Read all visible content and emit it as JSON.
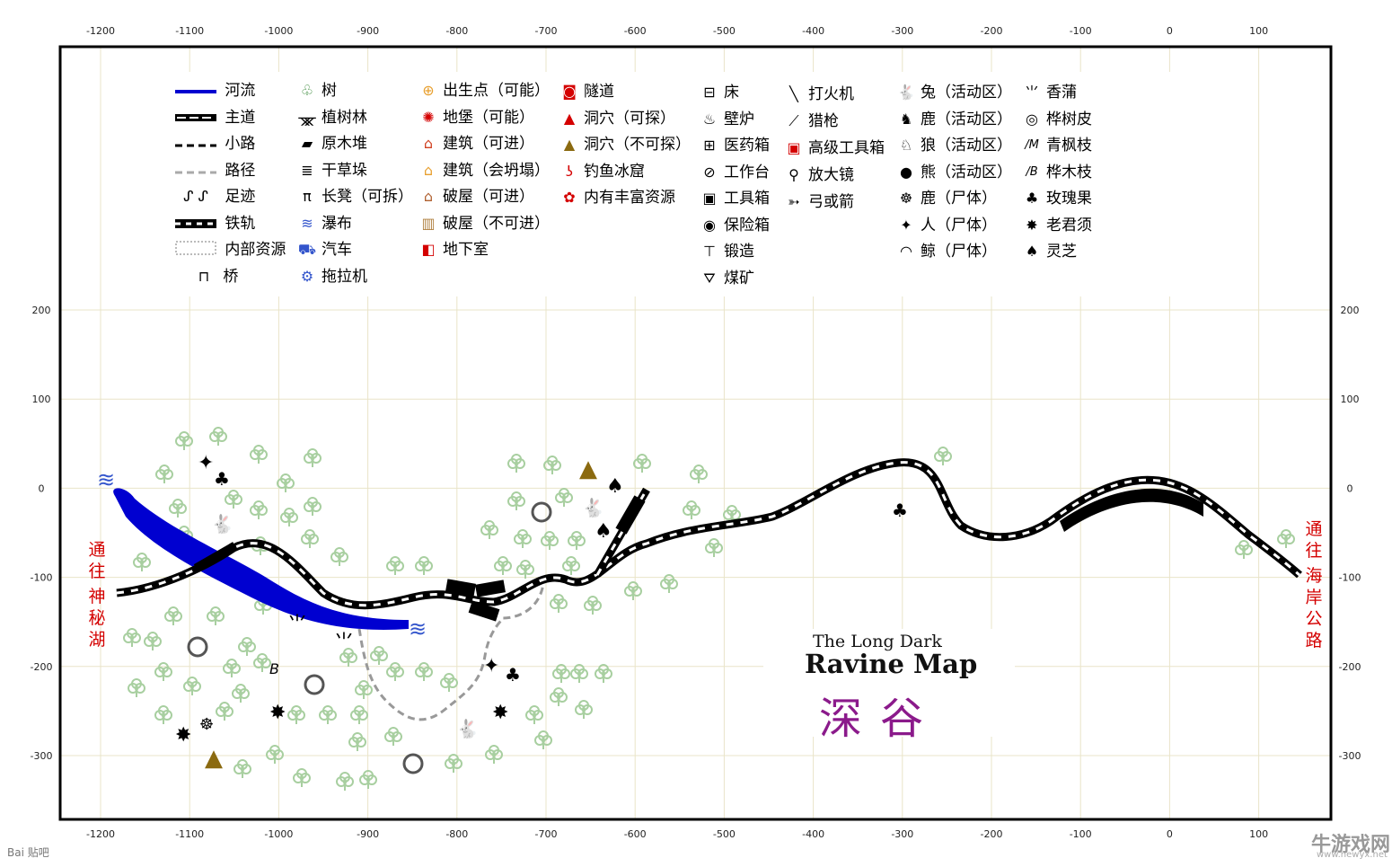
{
  "title": {
    "en_small": "The Long Dark",
    "en_big": "Ravine Map",
    "cn": "深谷"
  },
  "side_labels": {
    "left": [
      "通",
      "往",
      "神",
      "秘",
      "湖"
    ],
    "right": [
      "通",
      "往",
      "海",
      "岸",
      "公",
      "路"
    ]
  },
  "axis": {
    "x_ticks": [
      "-1200",
      "-1100",
      "-1000",
      "-900",
      "-800",
      "-700",
      "-600",
      "-500",
      "-400",
      "-300",
      "-200",
      "-100",
      "0",
      "100"
    ],
    "y_ticks": [
      "200",
      "100",
      "0",
      "-100",
      "-200",
      "-300"
    ]
  },
  "legend": {
    "col1": [
      "河流",
      "主道",
      "小路",
      "路径",
      "足迹",
      "铁轨",
      "内部资源",
      "桥"
    ],
    "col2": [
      "树",
      "植树林",
      "原木堆",
      "干草垛",
      "长凳（可拆）",
      "瀑布",
      "汽车",
      "拖拉机"
    ],
    "col3": [
      "出生点（可能）",
      "地堡（可能）",
      "建筑（可进）",
      "建筑（会坍塌）",
      "破屋（可进）",
      "破屋（不可进）",
      "地下室"
    ],
    "col4": [
      "隧道",
      "洞穴（可探）",
      "洞穴（不可探）",
      "钓鱼冰窟",
      "内有丰富资源"
    ],
    "col5": [
      "床",
      "壁炉",
      "医药箱",
      "工作台",
      "工具箱",
      "保险箱",
      "锻造",
      "煤矿"
    ],
    "col6": [
      "打火机",
      "猎枪",
      "高级工具箱",
      "放大镜",
      "弓或箭"
    ],
    "col7": [
      "兔（活动区）",
      "鹿（活动区）",
      "狼（活动区）",
      "熊（活动区）",
      "鹿（尸体）",
      "人（尸体）",
      "鲸（尸体）"
    ],
    "col8": [
      "香蒲",
      "桦树皮",
      "青枫枝",
      "桦木枝",
      "玫瑰果",
      "老君须",
      "灵芝"
    ]
  },
  "colors": {
    "river": "#0000d0",
    "rail": "#000000",
    "tree": "#a8cfa0",
    "grid": "#e9e4c8",
    "red_label": "#d40000",
    "title_cn": "#8b1a8b",
    "cave": "#8b6a10"
  },
  "icons": {
    "birch_branch_letter": "B",
    "maple_branch_letter": "M"
  },
  "watermarks": {
    "left": "Bai 贴吧",
    "right": "牛游戏网",
    "right_url": "www.newyx.net"
  }
}
